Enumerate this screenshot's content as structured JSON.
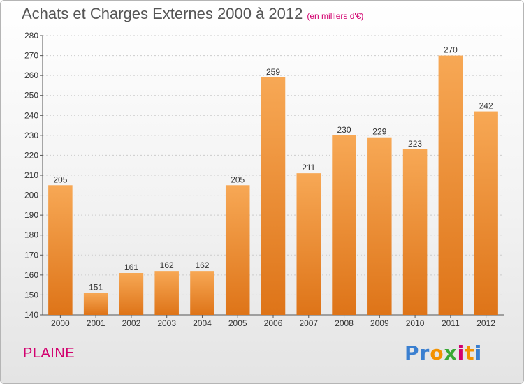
{
  "header": {
    "title": "Achats et Charges Externes 2000 à 2012",
    "subtitle": "(en milliers d'€)"
  },
  "commune": "PLAINE",
  "logo": {
    "text": "Proxiti",
    "letter_colors": [
      "#3a7fd0",
      "#3a7fd0",
      "#f39200",
      "#39a935",
      "#d2006e",
      "#f39200",
      "#3a7fd0"
    ]
  },
  "colors": {
    "bar_top": "#f7a855",
    "bar_bottom": "#de7418",
    "axis": "#555555",
    "grid": "#cccccc",
    "text": "#333333"
  },
  "chart_data": {
    "type": "bar",
    "title": "Achats et Charges Externes 2000 à 2012",
    "subtitle": "(en milliers d'€)",
    "xlabel": "",
    "ylabel": "",
    "categories": [
      "2000",
      "2001",
      "2002",
      "2003",
      "2004",
      "2005",
      "2006",
      "2007",
      "2008",
      "2009",
      "2010",
      "2011",
      "2012"
    ],
    "values": [
      205,
      151,
      161,
      162,
      162,
      205,
      259,
      211,
      230,
      229,
      223,
      270,
      242
    ],
    "ylim": [
      140,
      280
    ],
    "yticks": [
      140,
      150,
      160,
      170,
      180,
      190,
      200,
      210,
      220,
      230,
      240,
      250,
      260,
      270,
      280
    ],
    "grid": "horizontal dashed"
  }
}
